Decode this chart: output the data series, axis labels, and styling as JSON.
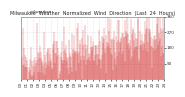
{
  "title": "Milwaukee  Weather  Normalized  Wind  Direction  (Last  24  Hours)",
  "subtitle": "milwaukee",
  "bg_color": "#ffffff",
  "plot_bg_color": "#ffffff",
  "grid_color": "#cccccc",
  "line_color": "#cc0000",
  "ylim": [
    0,
    360
  ],
  "yticks": [
    90,
    180,
    270,
    360
  ],
  "ytick_labels": [
    "90",
    "180",
    "270",
    "360"
  ],
  "num_points": 288,
  "title_fontsize": 3.5,
  "subtitle_fontsize": 3.0,
  "tick_fontsize": 3.0,
  "seed": 42
}
